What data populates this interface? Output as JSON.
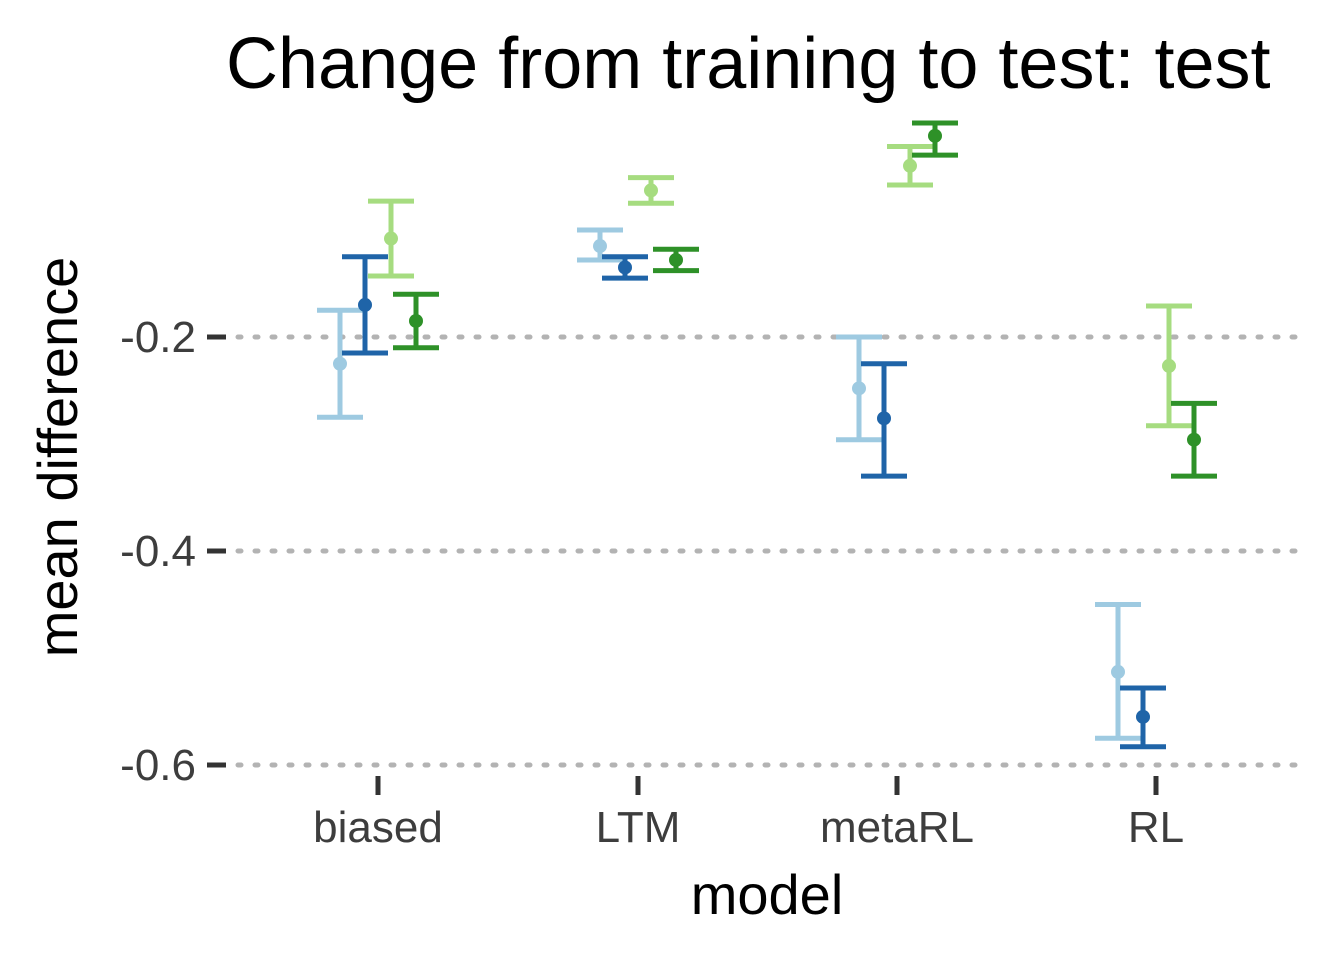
{
  "chart_data": {
    "type": "errorbar",
    "title": "Change from training to test: test",
    "xlabel": "model",
    "ylabel": "mean difference",
    "categories": [
      "biased",
      "LTM",
      "metaRL",
      "RL"
    ],
    "ylim": [
      -0.6,
      -0.02
    ],
    "yticks": [
      -0.2,
      -0.4,
      -0.6
    ],
    "ytick_labels": [
      "-0.2",
      "-0.4",
      "-0.6"
    ],
    "grid": "horizontal dotted at major ticks",
    "legend": "none",
    "series": [
      {
        "color": "#9ecae1",
        "values": [
          -0.225,
          -0.115,
          -0.248,
          -0.513
        ],
        "lower": [
          -0.275,
          -0.128,
          -0.296,
          -0.575
        ],
        "upper": [
          -0.175,
          -0.1,
          -0.2,
          -0.45
        ]
      },
      {
        "color": "#1f64a8",
        "values": [
          -0.17,
          -0.135,
          -0.276,
          -0.555
        ],
        "lower": [
          -0.215,
          -0.145,
          -0.33,
          -0.583
        ],
        "upper": [
          -0.125,
          -0.125,
          -0.225,
          -0.528
        ]
      },
      {
        "color": "#a6dc80",
        "values": [
          -0.108,
          -0.063,
          -0.04,
          -0.227
        ],
        "lower": [
          -0.143,
          -0.075,
          -0.058,
          -0.283
        ],
        "upper": [
          -0.073,
          -0.051,
          -0.022,
          -0.171
        ]
      },
      {
        "color": "#2e9128",
        "values": [
          -0.185,
          -0.128,
          -0.012,
          -0.296
        ],
        "lower": [
          -0.21,
          -0.138,
          -0.03,
          -0.33
        ],
        "upper": [
          -0.16,
          -0.118,
          0.0,
          -0.262
        ]
      }
    ]
  }
}
